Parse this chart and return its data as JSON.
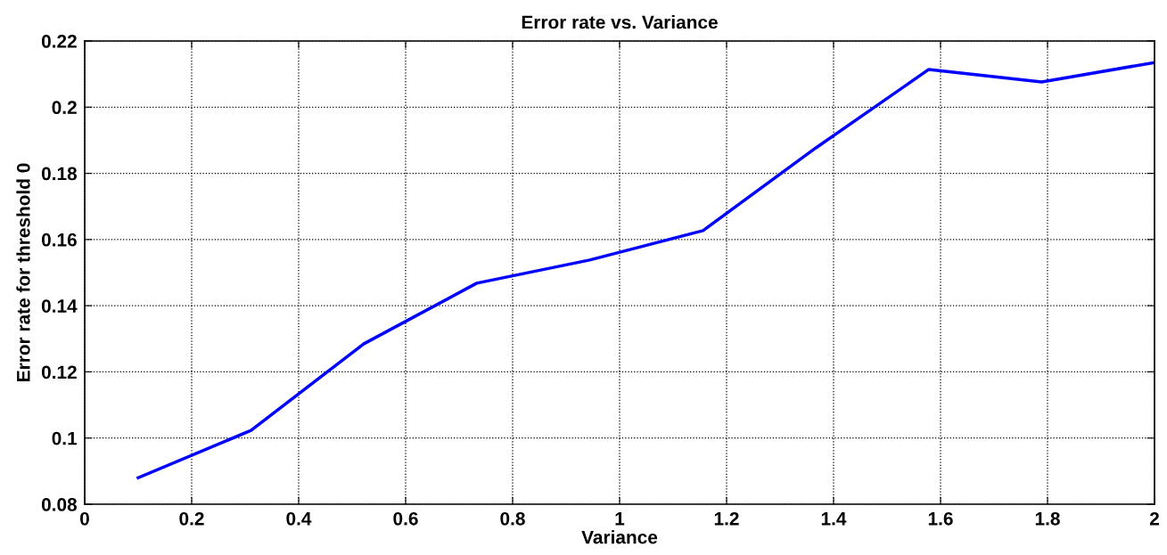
{
  "chart_data": {
    "type": "line",
    "title": "Error rate vs. Variance",
    "xlabel": "Variance",
    "ylabel": "Error rate for threshold 0",
    "x": [
      0.1,
      0.311,
      0.522,
      0.733,
      0.944,
      1.156,
      1.367,
      1.578,
      1.789,
      2.0
    ],
    "series": [
      {
        "color": "#0000ff",
        "values": [
          0.088,
          0.1023,
          0.1285,
          0.1468,
          0.1538,
          0.1627,
          0.1877,
          0.2114,
          0.2076,
          0.2135
        ]
      }
    ],
    "xlim": [
      0,
      2
    ],
    "xticks": [
      0,
      0.2,
      0.4,
      0.6,
      0.8,
      1,
      1.2,
      1.4,
      1.6,
      1.8,
      2
    ],
    "ylim": [
      0.08,
      0.22
    ],
    "yticks": [
      0.08,
      0.1,
      0.12,
      0.14,
      0.16,
      0.18,
      0.2,
      0.22
    ],
    "grid": true,
    "line_style": "solid",
    "marker": "none"
  }
}
